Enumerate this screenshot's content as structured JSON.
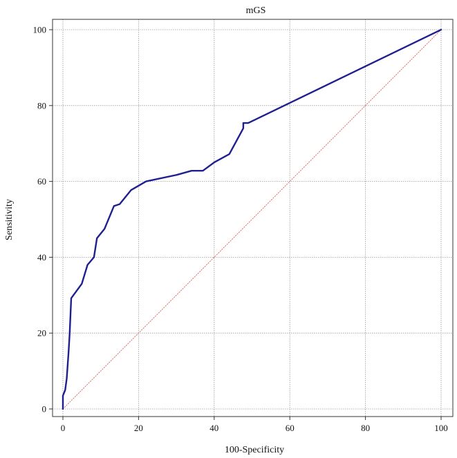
{
  "chart_data": {
    "type": "line",
    "title": "mGS",
    "xlabel": "100-Specificity",
    "ylabel": "Sensitivity",
    "xlim": [
      0,
      100
    ],
    "ylim": [
      0,
      100
    ],
    "xticks": [
      "0",
      "20",
      "40",
      "60",
      "80",
      "100"
    ],
    "yticks": [
      "0",
      "20",
      "40",
      "60",
      "80",
      "100"
    ],
    "grid": true,
    "legend": "none",
    "series": [
      {
        "color": "#1f1f8f",
        "style": "solid",
        "x": [
          0,
          0,
          0.6,
          1,
          1.5,
          1.8,
          2.2,
          5,
          6.5,
          8.2,
          9,
          11,
          13.5,
          15,
          18,
          22,
          30,
          34,
          37,
          40,
          44,
          47.7,
          47.7,
          49,
          100
        ],
        "y": [
          0,
          3.5,
          5,
          8,
          15,
          20,
          29.2,
          33,
          38,
          40,
          45,
          47.5,
          53.5,
          54,
          57.7,
          60,
          61.7,
          62.8,
          62.8,
          65,
          67.2,
          74,
          75.4,
          75.4,
          100
        ]
      },
      {
        "color": "#e06060",
        "style": "dotted",
        "x": [
          0,
          100
        ],
        "y": [
          0,
          100
        ]
      }
    ]
  }
}
